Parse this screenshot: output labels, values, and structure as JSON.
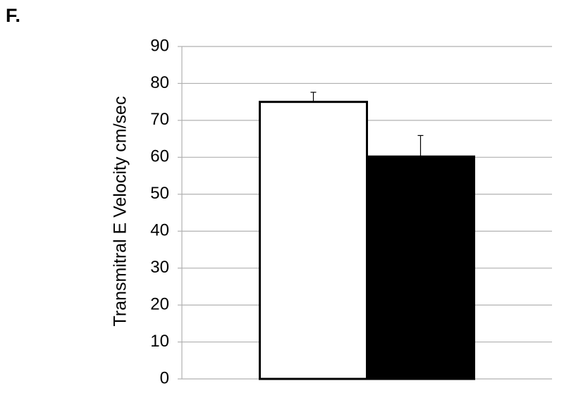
{
  "panel_label": "F.",
  "chart_data": {
    "type": "bar",
    "ylabel": "Transmitral E Velocity cm/sec",
    "categories": [
      null,
      null
    ],
    "values": [
      75,
      60.2
    ],
    "errors": [
      2.6,
      5.7
    ],
    "colors": [
      "#ffffff",
      "#000000"
    ],
    "edgecolor": "#000000",
    "ylim": [
      0,
      90
    ],
    "yticks": [
      0,
      10,
      20,
      30,
      40,
      50,
      60,
      70,
      80,
      90
    ],
    "grid": true
  }
}
